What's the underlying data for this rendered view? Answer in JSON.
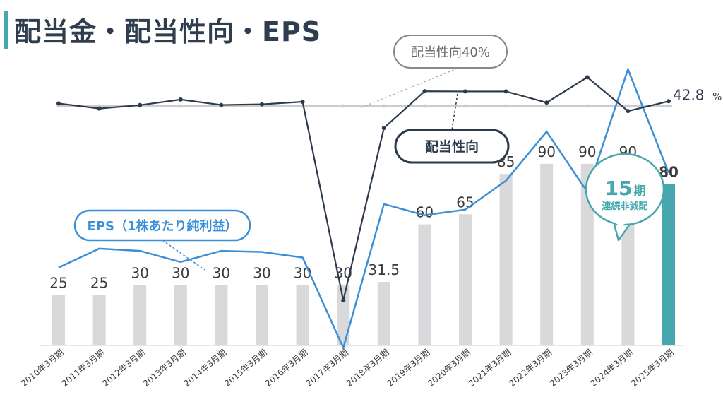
{
  "title": "配当金・配当性向・EPS",
  "colors": {
    "accent": "#46a8ae",
    "bar": "#d9d8da",
    "payout_line": "#2d3a4b",
    "eps_line": "#3b8fd6",
    "reference_line": "#cccccc",
    "callout_grey": "#888888"
  },
  "chart_data": {
    "type": "bar",
    "categories": [
      "2010年3月期",
      "2011年3月期",
      "2012年3月期",
      "2013年3月期",
      "2014年3月期",
      "2015年3月期",
      "2016年3月期",
      "2017年3月期",
      "2018年3月期",
      "2019年3月期",
      "2020年3月期",
      "2021年3月期",
      "2022年3月期",
      "2023年3月期",
      "2024年3月期",
      "2025年3月期"
    ],
    "dividend_labels": [
      "25",
      "25",
      "30",
      "30",
      "30",
      "30",
      "30",
      "30",
      "31.5",
      "60",
      "65",
      "85",
      "90",
      "90",
      "90",
      "80"
    ],
    "series": [
      {
        "name": "",
        "type": "bar",
        "values": [
          25,
          25,
          30,
          30,
          30,
          30,
          30,
          30,
          31.5,
          60,
          65,
          85,
          90,
          90,
          90,
          80
        ],
        "highlight_last": true
      },
      {
        "name": "配当性向",
        "type": "line",
        "values": [
          41.5,
          38.5,
          40.5,
          43.8,
          40.6,
          41.0,
          42.5,
          -75,
          27,
          48.7,
          48.6,
          48.6,
          42,
          57,
          37,
          42.8
        ]
      },
      {
        "name": "EPS（1株あたり純利益）",
        "type": "line",
        "values": [
          65,
          82,
          80,
          70,
          80,
          79,
          74,
          -7,
          122,
          112,
          117,
          143,
          187,
          133,
          243,
          150
        ]
      }
    ],
    "reference_line": {
      "label": "配当性向40%",
      "value": 40
    },
    "last_payout_label": {
      "value": "42.8",
      "unit": "%"
    },
    "callout": {
      "number": "15",
      "unit": "期",
      "text": "連続非減配"
    },
    "ylim_dividend": [
      0,
      140
    ],
    "ylim_payout": [
      -80,
      60
    ],
    "ylim_eps": [
      -10,
      250
    ],
    "grid": false,
    "legend": "none"
  }
}
